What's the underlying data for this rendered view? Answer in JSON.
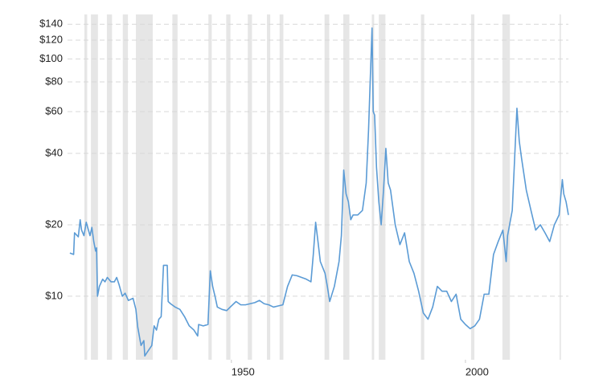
{
  "chart_data": {
    "type": "line",
    "log_scale": true,
    "grid": true,
    "xlim": [
      1915,
      2022
    ],
    "xticks": [
      1950,
      2000
    ],
    "ylim": [
      5.4,
      154
    ],
    "yticks": [
      {
        "value": 10,
        "label": "$10"
      },
      {
        "value": 20,
        "label": "$20"
      },
      {
        "value": 40,
        "label": "$40"
      },
      {
        "value": 60,
        "label": "$60"
      },
      {
        "value": 80,
        "label": "$80"
      },
      {
        "value": 100,
        "label": "$100"
      },
      {
        "value": 120,
        "label": "$120"
      },
      {
        "value": 140,
        "label": "$140"
      }
    ],
    "band_color": "#e6e6e6",
    "recessions": [
      [
        1918.6,
        1919.2
      ],
      [
        1920.0,
        1921.5
      ],
      [
        1923.4,
        1924.5
      ],
      [
        1926.8,
        1927.9
      ],
      [
        1929.6,
        1933.2
      ],
      [
        1937.4,
        1938.5
      ],
      [
        1945.1,
        1945.8
      ],
      [
        1948.9,
        1949.8
      ],
      [
        1953.5,
        1954.4
      ],
      [
        1957.6,
        1958.3
      ],
      [
        1960.3,
        1961.1
      ],
      [
        1969.9,
        1970.9
      ],
      [
        1973.9,
        1975.2
      ],
      [
        1980.0,
        1980.5
      ],
      [
        1981.5,
        1982.9
      ],
      [
        1990.5,
        1991.2
      ],
      [
        2001.2,
        2001.9
      ],
      [
        2007.9,
        2009.5
      ],
      [
        2020.1,
        2020.4
      ]
    ],
    "series": [
      {
        "color": "#5b9bd5",
        "x": [
          1915.5,
          1916.3,
          1916.5,
          1917.3,
          1917.7,
          1918,
          1918.5,
          1919,
          1919.8,
          1920.2,
          1920.6,
          1921,
          1921.2,
          1921.4,
          1921.8,
          1922.5,
          1923,
          1923.5,
          1924.3,
          1925,
          1925.5,
          1926,
          1926.7,
          1927.3,
          1928,
          1929,
          1929.6,
          1930,
          1930.7,
          1931.3,
          1931.5,
          1932,
          1933,
          1933.5,
          1934,
          1934.5,
          1935,
          1935.5,
          1936.3,
          1936.5,
          1937,
          1938,
          1939,
          1940,
          1941,
          1942,
          1942.8,
          1943,
          1944,
          1945,
          1945.5,
          1946,
          1946.5,
          1947,
          1948,
          1949,
          1950,
          1951,
          1952,
          1953,
          1954,
          1955,
          1956,
          1957,
          1958,
          1959,
          1960,
          1961,
          1962,
          1963,
          1964,
          1965,
          1966,
          1967,
          1967.5,
          1968,
          1968.5,
          1969,
          1970,
          1970.5,
          1971,
          1972,
          1973,
          1973.5,
          1974,
          1974.5,
          1975,
          1975.5,
          1976,
          1977,
          1978,
          1978.8,
          1979.3,
          1979.6,
          1980.05,
          1980.3,
          1980.6,
          1981,
          1981.5,
          1982,
          1982.5,
          1983,
          1983.5,
          1984,
          1985,
          1986,
          1987,
          1988,
          1989,
          1990,
          1991,
          1992,
          1993,
          1994,
          1995,
          1996,
          1997,
          1998,
          1999,
          2000,
          2001,
          2002,
          2003,
          2004,
          2005,
          2006,
          2007,
          2008,
          2008.7,
          2009,
          2010,
          2011,
          2011.5,
          2012,
          2013,
          2014,
          2015,
          2016,
          2017,
          2018,
          2019,
          2020,
          2020.7,
          2021,
          2021.5,
          2022
        ],
        "values": [
          15.2,
          15.0,
          18.5,
          17.8,
          21,
          19,
          18,
          20.5,
          18,
          19.5,
          17,
          15.5,
          16,
          10,
          11,
          11.8,
          11.5,
          12,
          11.5,
          11.5,
          12,
          11.2,
          10,
          10.3,
          9.6,
          9.8,
          8.8,
          7.4,
          6.2,
          6.5,
          5.6,
          5.8,
          6.2,
          7.5,
          7.2,
          8,
          8.2,
          13.5,
          13.5,
          9.5,
          9.3,
          9,
          8.8,
          8.2,
          7.5,
          7.2,
          6.8,
          7.6,
          7.5,
          7.6,
          12.8,
          11,
          10,
          9,
          8.8,
          8.7,
          9.1,
          9.5,
          9.2,
          9.2,
          9.3,
          9.4,
          9.6,
          9.3,
          9.2,
          9.0,
          9.1,
          9.2,
          11,
          12.3,
          12.2,
          12,
          11.8,
          11.5,
          15,
          20.5,
          17,
          14,
          12.5,
          11,
          9.5,
          11,
          14,
          18,
          34,
          27,
          25,
          21,
          22,
          22,
          23,
          30,
          50,
          75,
          135,
          60,
          58,
          35,
          25,
          20,
          28,
          42,
          30,
          28,
          20,
          16.5,
          18.5,
          14,
          12.5,
          10.5,
          8.5,
          8,
          9,
          11,
          10.5,
          10.5,
          9.5,
          10.2,
          8,
          7.6,
          7.3,
          7.5,
          8,
          10.2,
          10.2,
          15,
          17,
          19,
          14,
          18,
          23,
          62,
          45,
          38,
          28,
          23,
          19,
          20,
          18.5,
          17,
          20,
          22,
          31,
          27,
          25,
          22
        ]
      }
    ]
  }
}
